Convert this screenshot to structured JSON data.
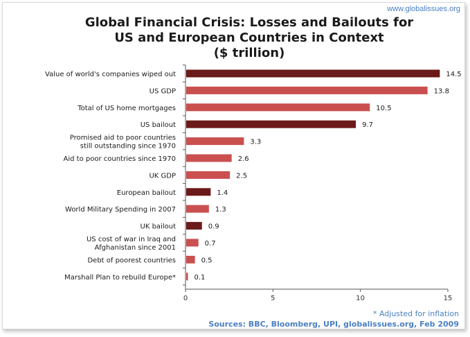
{
  "site": "www.globalissues.org",
  "chart_data": {
    "type": "bar",
    "orientation": "horizontal",
    "title_lines": [
      "Global Financial Crisis: Losses and Bailouts for",
      "US and European Countries in Context",
      "($ trillion)"
    ],
    "categories": [
      [
        "Value of world's companies wiped out"
      ],
      [
        "US GDP"
      ],
      [
        "Total of US home mortgages"
      ],
      [
        "US bailout"
      ],
      [
        "Promised aid to poor countries",
        "still outstanding since 1970"
      ],
      [
        "Aid to poor countries since 1970"
      ],
      [
        "UK GDP"
      ],
      [
        "European bailout"
      ],
      [
        "World Military Spending in 2007"
      ],
      [
        "UK bailout"
      ],
      [
        "US cost of war in Iraq and",
        "Afghanistan since 2001"
      ],
      [
        "Debt of poorest countries"
      ],
      [
        "Marshall Plan to rebuild Europe*"
      ]
    ],
    "values": [
      14.5,
      13.8,
      10.5,
      9.7,
      3.3,
      2.6,
      2.5,
      1.4,
      1.3,
      0.9,
      0.7,
      0.5,
      0.1
    ],
    "value_labels": [
      "14.5",
      "13.8",
      "10.5",
      "9.7",
      "3.3",
      "2.6",
      "2.5",
      "1.4",
      "1.3",
      "0.9",
      "0.7",
      "0.5",
      "0.1"
    ],
    "bar_colors": [
      "#6b1a1a",
      "#c9504f",
      "#c9504f",
      "#6b1a1a",
      "#c9504f",
      "#c9504f",
      "#c9504f",
      "#6b1a1a",
      "#c9504f",
      "#6b1a1a",
      "#c9504f",
      "#c9504f",
      "#c9504f"
    ],
    "xlim": [
      0,
      15
    ],
    "xticks": [
      "0",
      "5",
      "10",
      "15"
    ],
    "grid": false
  },
  "footnote": "* Adjusted for inflation",
  "sources": "Sources: BBC, Bloomberg, UPI, globalissues.org, Feb 2009"
}
